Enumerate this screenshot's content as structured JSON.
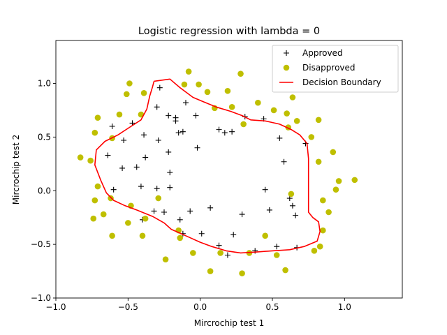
{
  "chart_data": {
    "type": "scatter",
    "title": "Logistic regression with lambda = 0",
    "xlabel": "Mircrochip test 1",
    "ylabel": "Mircrochip test 2",
    "xlim": [
      -1.0,
      1.4
    ],
    "ylim": [
      -1.0,
      1.4
    ],
    "xticks": [
      -1.0,
      -0.5,
      0.0,
      0.5,
      1.0
    ],
    "yticks": [
      -1.0,
      -0.5,
      0.0,
      0.5,
      1.0
    ],
    "xtick_labels": [
      "−1.0",
      "−0.5",
      "0.0",
      "0.5",
      "1.0"
    ],
    "ytick_labels": [
      "−1.0",
      "−0.5",
      "0.0",
      "0.5",
      "1.0"
    ],
    "grid": false,
    "legend_placement": "top-right",
    "series": [
      {
        "name": "Approved",
        "marker": "plus",
        "color": "#000000",
        "points": [
          [
            -0.28,
            0.96
          ],
          [
            -0.3,
            0.78
          ],
          [
            -0.1,
            0.82
          ],
          [
            -0.22,
            0.7
          ],
          [
            -0.17,
            0.68
          ],
          [
            -0.17,
            0.65
          ],
          [
            -0.47,
            0.63
          ],
          [
            -0.61,
            0.6
          ],
          [
            -0.12,
            0.55
          ],
          [
            -0.15,
            0.54
          ],
          [
            -0.39,
            0.52
          ],
          [
            -0.53,
            0.47
          ],
          [
            -0.29,
            0.47
          ],
          [
            -0.03,
            0.7
          ],
          [
            0.13,
            0.57
          ],
          [
            0.17,
            0.54
          ],
          [
            0.22,
            0.55
          ],
          [
            0.31,
            0.69
          ],
          [
            0.44,
            0.67
          ],
          [
            0.55,
            0.49
          ],
          [
            0.73,
            0.44
          ],
          [
            0.58,
            0.27
          ],
          [
            -0.22,
            0.36
          ],
          [
            -0.38,
            0.31
          ],
          [
            -0.02,
            0.4
          ],
          [
            -0.64,
            0.33
          ],
          [
            -0.54,
            0.21
          ],
          [
            -0.44,
            0.22
          ],
          [
            -0.21,
            0.17
          ],
          [
            -0.6,
            0.01
          ],
          [
            -0.41,
            0.04
          ],
          [
            -0.3,
            0.02
          ],
          [
            -0.21,
            0.03
          ],
          [
            0.45,
            0.01
          ],
          [
            0.62,
            -0.07
          ],
          [
            0.64,
            -0.14
          ],
          [
            -0.32,
            -0.19
          ],
          [
            -0.07,
            -0.19
          ],
          [
            -0.25,
            -0.2
          ],
          [
            0.07,
            -0.16
          ],
          [
            0.29,
            -0.22
          ],
          [
            0.48,
            -0.18
          ],
          [
            0.66,
            -0.23
          ],
          [
            -0.4,
            -0.27
          ],
          [
            -0.14,
            -0.27
          ],
          [
            -0.12,
            -0.4
          ],
          [
            0.01,
            -0.4
          ],
          [
            0.23,
            -0.41
          ],
          [
            0.13,
            -0.51
          ],
          [
            0.19,
            -0.6
          ],
          [
            0.38,
            -0.56
          ],
          [
            0.53,
            -0.52
          ],
          [
            0.67,
            -0.53
          ]
        ]
      },
      {
        "name": "Disapproved",
        "marker": "circle",
        "color": "#bfbf00",
        "points": [
          [
            -0.49,
            1.0
          ],
          [
            -0.51,
            0.9
          ],
          [
            -0.39,
            0.91
          ],
          [
            -0.08,
            1.11
          ],
          [
            -0.11,
            0.99
          ],
          [
            -0.01,
            0.99
          ],
          [
            0.05,
            0.92
          ],
          [
            0.19,
            0.93
          ],
          [
            0.28,
            1.09
          ],
          [
            0.4,
            0.82
          ],
          [
            0.64,
            0.87
          ],
          [
            0.1,
            0.77
          ],
          [
            0.22,
            0.78
          ],
          [
            0.51,
            0.75
          ],
          [
            0.6,
            0.72
          ],
          [
            0.67,
            0.65
          ],
          [
            0.82,
            0.66
          ],
          [
            -0.56,
            0.71
          ],
          [
            -0.71,
            0.68
          ],
          [
            -0.41,
            0.71
          ],
          [
            -0.73,
            0.54
          ],
          [
            -0.61,
            0.49
          ],
          [
            -0.83,
            0.31
          ],
          [
            -0.76,
            0.28
          ],
          [
            0.3,
            0.62
          ],
          [
            0.61,
            0.59
          ],
          [
            0.77,
            0.5
          ],
          [
            0.92,
            0.36
          ],
          [
            0.82,
            0.27
          ],
          [
            0.96,
            0.09
          ],
          [
            1.07,
            0.1
          ],
          [
            0.94,
            0.01
          ],
          [
            0.63,
            -0.03
          ],
          [
            0.85,
            -0.09
          ],
          [
            -0.71,
            0.04
          ],
          [
            -0.73,
            -0.09
          ],
          [
            -0.62,
            -0.07
          ],
          [
            -0.67,
            -0.22
          ],
          [
            -0.48,
            -0.14
          ],
          [
            -0.38,
            -0.26
          ],
          [
            -0.5,
            -0.3
          ],
          [
            -0.29,
            -0.07
          ],
          [
            -0.74,
            -0.26
          ],
          [
            -0.61,
            -0.42
          ],
          [
            -0.4,
            -0.42
          ],
          [
            -0.15,
            -0.37
          ],
          [
            -0.14,
            -0.44
          ],
          [
            -0.05,
            -0.58
          ],
          [
            0.14,
            -0.58
          ],
          [
            0.34,
            -0.58
          ],
          [
            0.45,
            -0.42
          ],
          [
            0.53,
            -0.6
          ],
          [
            0.59,
            -0.74
          ],
          [
            0.89,
            -0.2
          ],
          [
            0.85,
            -0.37
          ],
          [
            0.83,
            -0.52
          ],
          [
            0.79,
            -0.56
          ],
          [
            0.07,
            -0.75
          ],
          [
            0.29,
            -0.77
          ],
          [
            -0.24,
            -0.64
          ]
        ]
      },
      {
        "name": "Decision Boundary",
        "marker": "line",
        "color": "#ff0000",
        "points": [
          [
            -0.32,
            1.02
          ],
          [
            -0.21,
            1.04
          ],
          [
            -0.14,
            0.96
          ],
          [
            -0.05,
            0.87
          ],
          [
            0.02,
            0.83
          ],
          [
            0.11,
            0.78
          ],
          [
            0.21,
            0.74
          ],
          [
            0.29,
            0.7
          ],
          [
            0.35,
            0.66
          ],
          [
            0.45,
            0.65
          ],
          [
            0.55,
            0.62
          ],
          [
            0.63,
            0.57
          ],
          [
            0.69,
            0.52
          ],
          [
            0.74,
            0.44
          ],
          [
            0.75,
            0.3
          ],
          [
            0.75,
            0.1
          ],
          [
            0.75,
            -0.05
          ],
          [
            0.75,
            -0.2
          ],
          [
            0.78,
            -0.25
          ],
          [
            0.82,
            -0.29
          ],
          [
            0.83,
            -0.38
          ],
          [
            0.81,
            -0.47
          ],
          [
            0.72,
            -0.52
          ],
          [
            0.62,
            -0.55
          ],
          [
            0.5,
            -0.56
          ],
          [
            0.4,
            -0.57
          ],
          [
            0.28,
            -0.58
          ],
          [
            0.18,
            -0.56
          ],
          [
            0.08,
            -0.52
          ],
          [
            0.0,
            -0.48
          ],
          [
            -0.1,
            -0.42
          ],
          [
            -0.2,
            -0.36
          ],
          [
            -0.25,
            -0.3
          ],
          [
            -0.33,
            -0.24
          ],
          [
            -0.44,
            -0.18
          ],
          [
            -0.52,
            -0.14
          ],
          [
            -0.6,
            -0.09
          ],
          [
            -0.65,
            -0.02
          ],
          [
            -0.69,
            0.1
          ],
          [
            -0.73,
            0.24
          ],
          [
            -0.72,
            0.38
          ],
          [
            -0.66,
            0.46
          ],
          [
            -0.57,
            0.52
          ],
          [
            -0.49,
            0.59
          ],
          [
            -0.41,
            0.66
          ],
          [
            -0.37,
            0.76
          ],
          [
            -0.35,
            0.88
          ],
          [
            -0.33,
            0.97
          ],
          [
            -0.32,
            1.02
          ]
        ]
      }
    ]
  }
}
